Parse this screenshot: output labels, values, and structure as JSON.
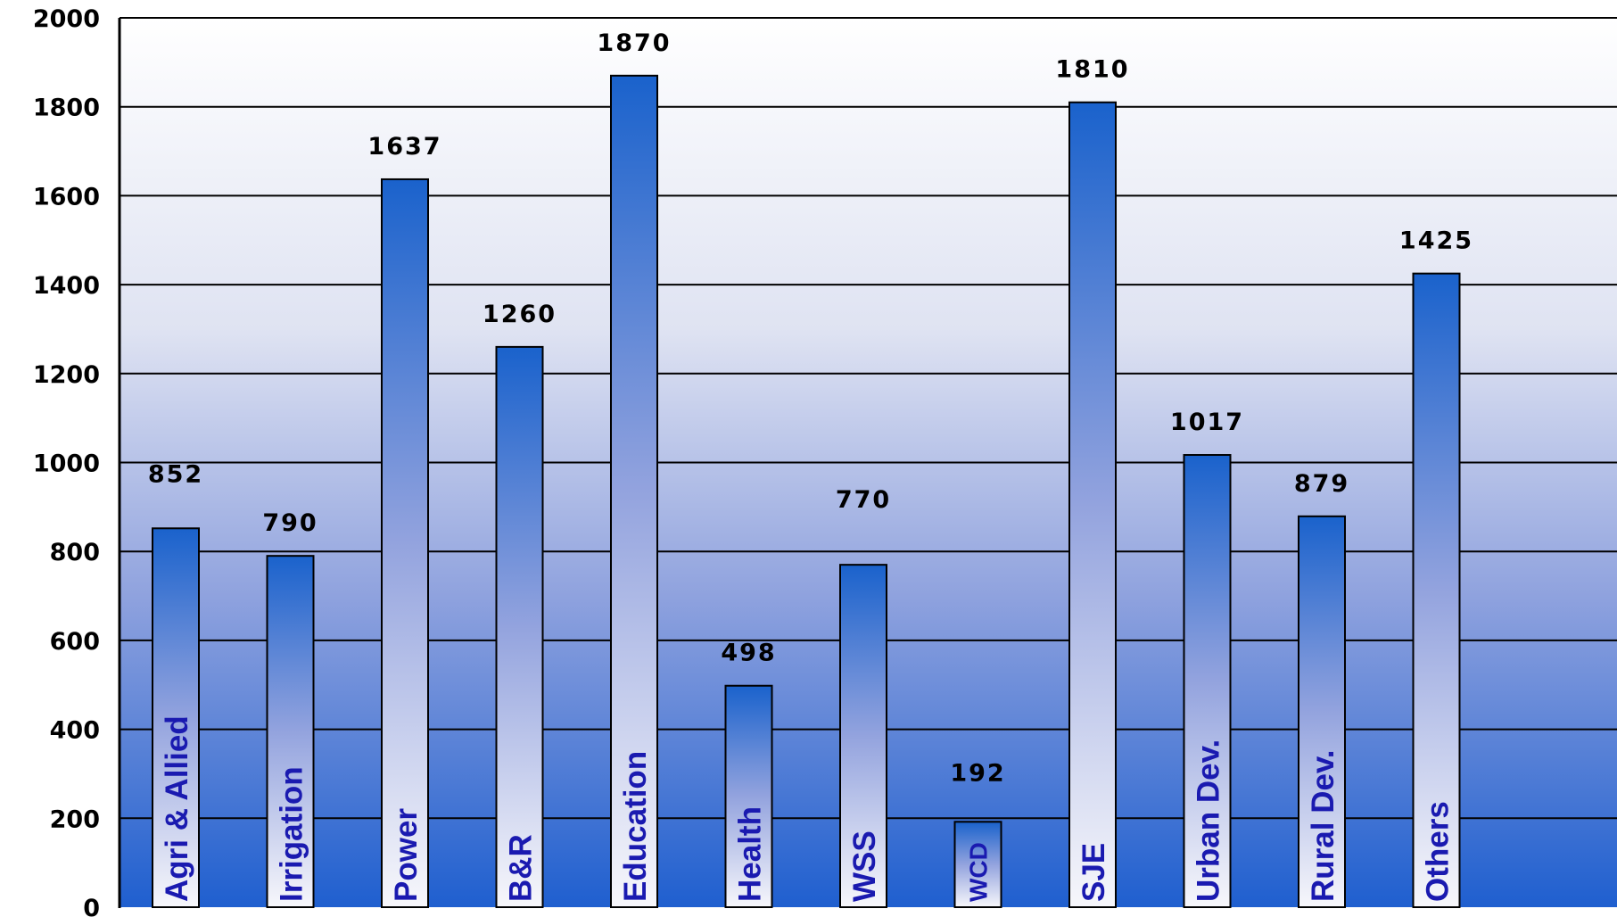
{
  "chart_data": {
    "type": "bar",
    "categories": [
      "Agri & Allied",
      "Irrigation",
      "Power",
      "B&R",
      "Education",
      "Health",
      "WSS",
      "WCD",
      "SJE",
      "Urban Dev.",
      "Rural Dev.",
      "Others"
    ],
    "values": [
      852,
      790,
      1637,
      1260,
      1870,
      498,
      770,
      192,
      1810,
      1017,
      879,
      1425
    ],
    "value_labels": [
      "852",
      "790",
      "1637",
      "1260",
      "1870",
      "498",
      "770",
      "192",
      "1810",
      "1017",
      "879",
      "1425"
    ],
    "yticks": [
      "0",
      "200",
      "400",
      "600",
      "800",
      "1000",
      "1200",
      "1400",
      "1600",
      "1800",
      "2000"
    ],
    "ylim": [
      0,
      2000
    ],
    "grid": true,
    "title": "",
    "xlabel": "",
    "ylabel": "",
    "colors": {
      "bar_dark": "#1a62cc",
      "bar_light": "#f7f7fb",
      "plot_bg_top": "#ffffff",
      "plot_bg_bottom": "#1f5fcf",
      "category_label": "#1a1ab0"
    }
  }
}
